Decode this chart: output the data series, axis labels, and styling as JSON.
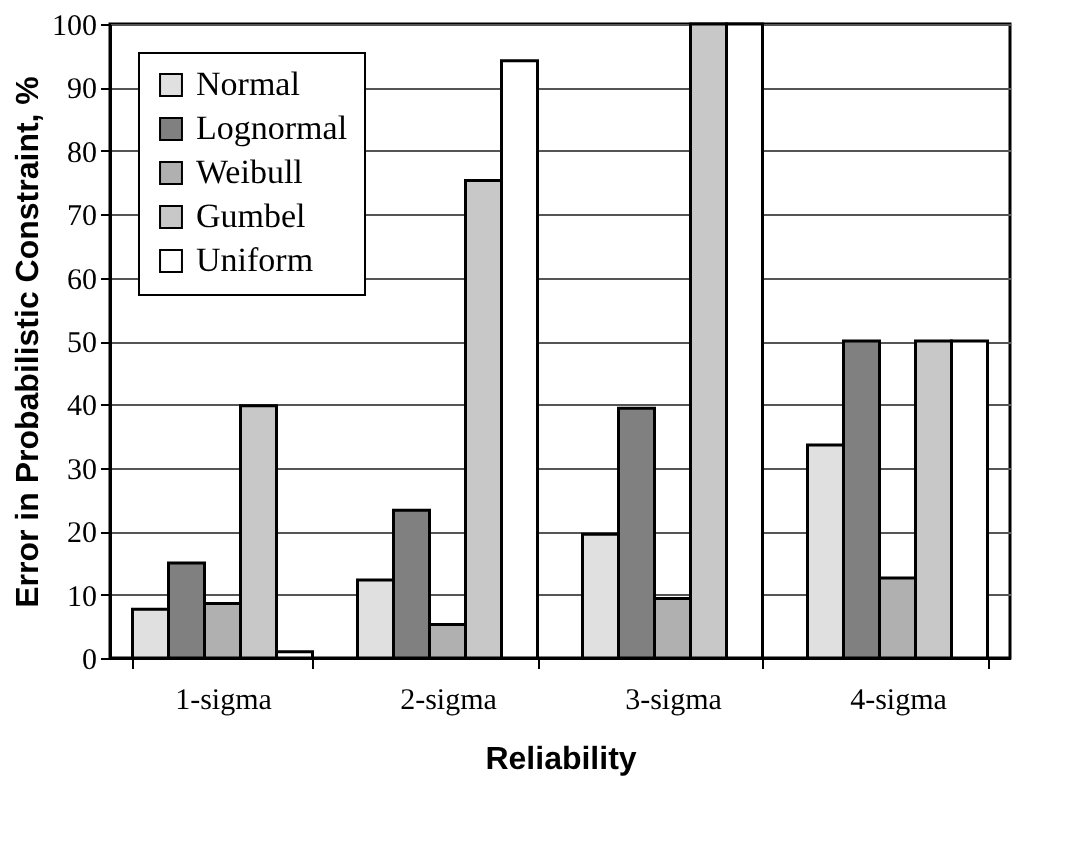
{
  "chart_data": {
    "type": "bar",
    "xlabel": "Reliability",
    "ylabel": "Error in Probabilistic Constraint, %",
    "categories": [
      "1-sigma",
      "2-sigma",
      "3-sigma",
      "4-sigma"
    ],
    "series": [
      {
        "name": "Normal",
        "color": "#e0e0e0",
        "values": [
          7.7,
          12.3,
          19.5,
          33.6
        ]
      },
      {
        "name": "Lognormal",
        "color": "#808080",
        "values": [
          15,
          23.3,
          39.4,
          50
        ]
      },
      {
        "name": "Weibull",
        "color": "#b0b0b0",
        "values": [
          8.6,
          5.3,
          9.4,
          12.6
        ]
      },
      {
        "name": "Gumbel",
        "color": "#c8c8c8",
        "values": [
          39.8,
          75.3,
          100,
          50
        ]
      },
      {
        "name": "Uniform",
        "color": "#ffffff",
        "values": [
          1,
          94.2,
          100,
          50
        ]
      }
    ],
    "ylim": [
      0,
      100
    ],
    "yticks": [
      0,
      10,
      20,
      30,
      40,
      50,
      60,
      70,
      80,
      90,
      100
    ],
    "grid": "y",
    "legend": "top left"
  }
}
